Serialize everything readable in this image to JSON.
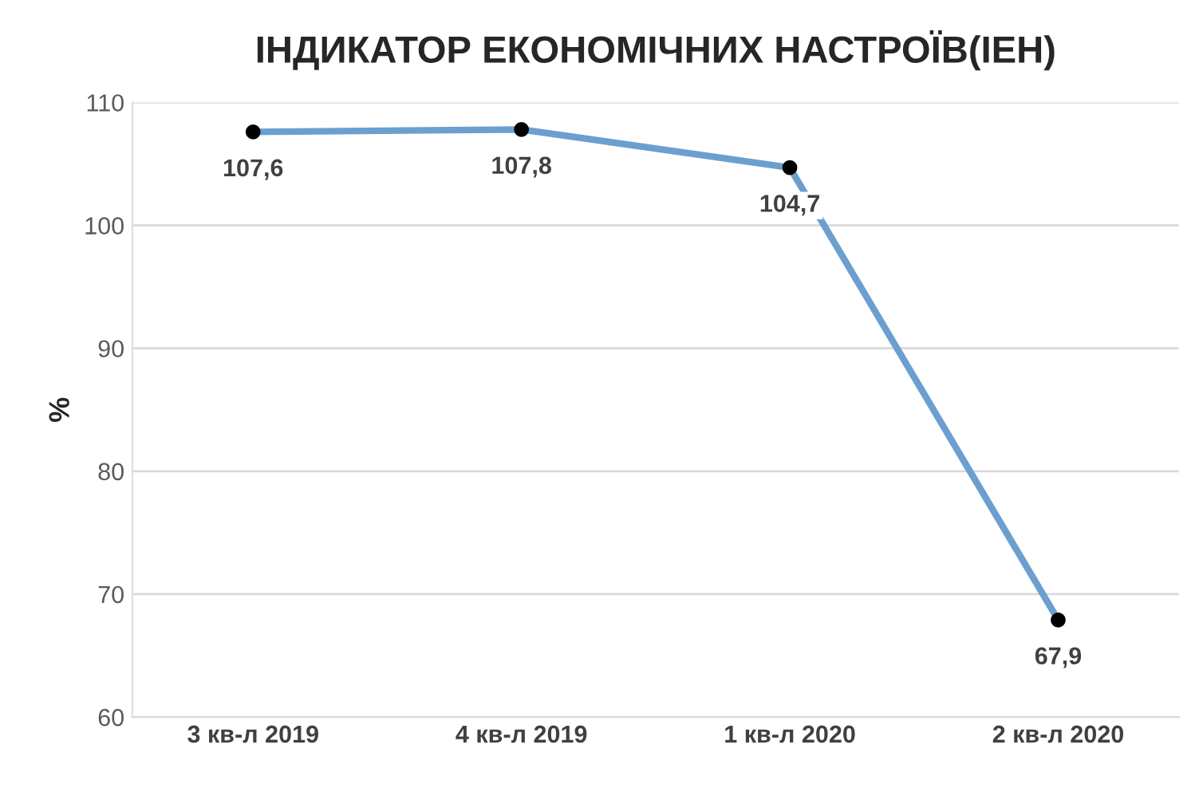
{
  "chart_data": {
    "type": "line",
    "title": "ІНДИКАТОР ЕКОНОМІЧНИХ НАСТРОЇВ(ІЕН)",
    "ylabel": "%",
    "categories": [
      "3 кв-л 2019",
      "4 кв-л 2019",
      "1 кв-л 2020",
      "2 кв-л 2020"
    ],
    "series": [
      {
        "color": "#6b9fcf",
        "values": [
          107.6,
          107.8,
          104.7,
          67.9
        ],
        "value_labels": [
          "107,6",
          "107,8",
          "104,7",
          "67,9"
        ]
      }
    ],
    "ylim": [
      60,
      110
    ],
    "yticks": [
      60,
      70,
      80,
      90,
      100,
      110
    ],
    "grid": "y",
    "legend": false,
    "marker": "circle",
    "line_style": "solid"
  }
}
